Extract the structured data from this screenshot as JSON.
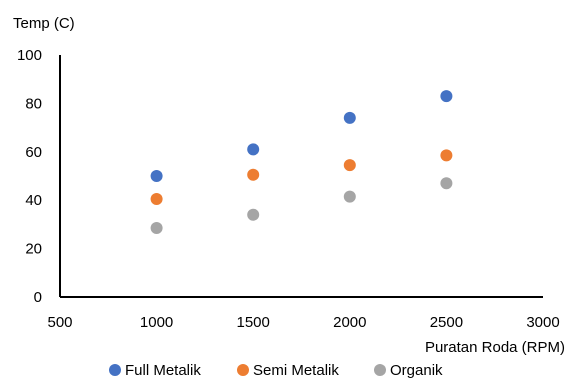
{
  "chart_data": {
    "type": "scatter",
    "title": "",
    "xlabel": "Puratan Roda (RPM)",
    "ylabel": "Temp (C)",
    "xlim": [
      500,
      3000
    ],
    "ylim": [
      0,
      100
    ],
    "xticks": [
      500,
      1000,
      1500,
      2000,
      2500,
      3000
    ],
    "yticks": [
      0,
      20,
      40,
      60,
      80,
      100
    ],
    "grid": false,
    "legend_position": "bottom",
    "series": [
      {
        "name": "Full Metalik",
        "color": "#4472C4",
        "points": [
          {
            "x": 1000,
            "y": 50
          },
          {
            "x": 1500,
            "y": 61
          },
          {
            "x": 2000,
            "y": 74
          },
          {
            "x": 2500,
            "y": 83
          }
        ]
      },
      {
        "name": "Semi Metalik",
        "color": "#ED7D31",
        "points": [
          {
            "x": 1000,
            "y": 40.5
          },
          {
            "x": 1500,
            "y": 50.5
          },
          {
            "x": 2000,
            "y": 54.5
          },
          {
            "x": 2500,
            "y": 58.5
          }
        ]
      },
      {
        "name": "Organik",
        "color": "#A5A5A5",
        "points": [
          {
            "x": 1000,
            "y": 28.5
          },
          {
            "x": 1500,
            "y": 34
          },
          {
            "x": 2000,
            "y": 41.5
          },
          {
            "x": 2500,
            "y": 47
          }
        ]
      }
    ]
  }
}
